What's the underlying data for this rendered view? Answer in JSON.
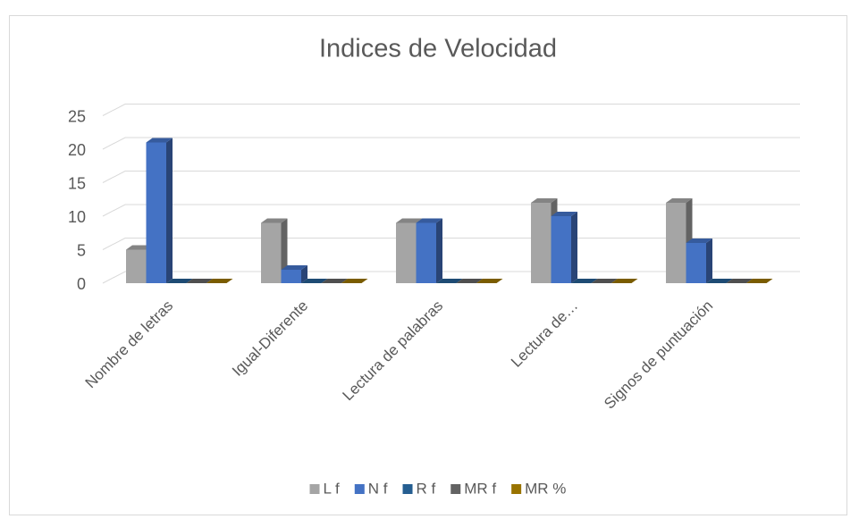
{
  "chart_data": {
    "type": "bar3d",
    "title": "Indices de Velocidad",
    "categories": [
      "Nombre de letras",
      "Igual-Diferente",
      "Lectura de palabras",
      "Lectura de…",
      "Signos de puntuación"
    ],
    "series": [
      {
        "name": "L f",
        "color": "#a5a5a5",
        "values": [
          5,
          9,
          9,
          12,
          12
        ]
      },
      {
        "name": "N f",
        "color": "#4472c4",
        "values": [
          21,
          2,
          9,
          10,
          6
        ]
      },
      {
        "name": "R f",
        "color": "#255e91",
        "values": [
          0,
          0,
          0,
          0,
          0
        ]
      },
      {
        "name": "MR f",
        "color": "#636363",
        "values": [
          0,
          0,
          0,
          0,
          0
        ]
      },
      {
        "name": "MR %",
        "color": "#997300",
        "values": [
          0,
          0,
          0,
          0,
          0
        ]
      }
    ],
    "ylim": [
      0,
      25
    ],
    "yticks": [
      0,
      5,
      10,
      15,
      20,
      25
    ],
    "grid": true,
    "legend": "bottom"
  }
}
